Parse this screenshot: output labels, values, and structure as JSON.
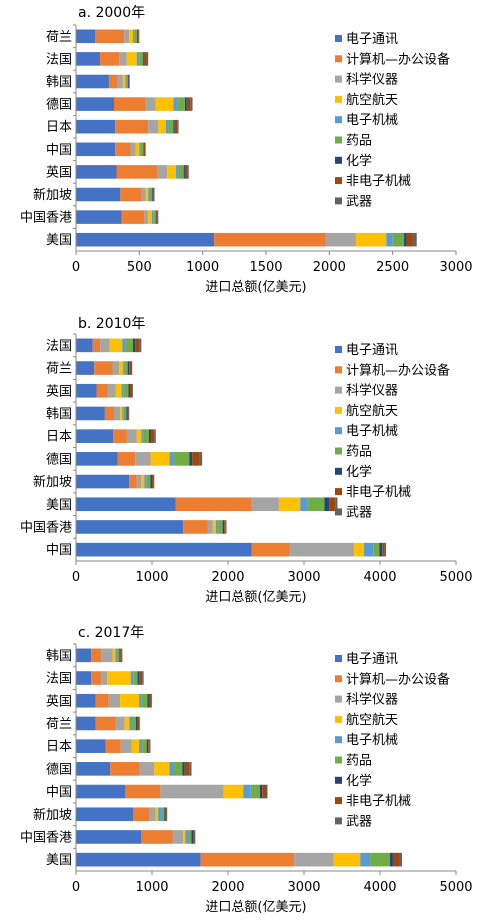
{
  "colors": [
    "#4472C4",
    "#ED7D31",
    "#A5A5A5",
    "#FFC000",
    "#5B9BD5",
    "#70AD47",
    "#264478",
    "#9E480E",
    "#636363"
  ],
  "chart_data": [
    {
      "type": "bar",
      "orientation": "horizontal",
      "stacked": true,
      "title": "a. 2000年",
      "xlabel": "进口总额(亿美元)",
      "xlim": [
        0,
        3000
      ],
      "xticks": [
        "0",
        "500",
        "1000",
        "1500",
        "2000",
        "2500",
        "3000"
      ],
      "xtick_values": [
        0,
        500,
        1000,
        1500,
        2000,
        2500,
        3000
      ],
      "legend_position": "right",
      "categories": [
        "荷兰",
        "法国",
        "韩国",
        "德国",
        "日本",
        "中国",
        "英国",
        "新加坡",
        "中国香港",
        "美国"
      ],
      "series": [
        {
          "name": "电子通讯",
          "values": [
            150,
            190,
            260,
            300,
            310,
            310,
            320,
            350,
            360,
            1090
          ]
        },
        {
          "name": "计算机—办公设备",
          "values": [
            230,
            150,
            70,
            250,
            260,
            120,
            320,
            170,
            180,
            880
          ]
        },
        {
          "name": "科学仪器",
          "values": [
            40,
            60,
            40,
            80,
            80,
            40,
            80,
            30,
            30,
            240
          ]
        },
        {
          "name": "航空航天",
          "values": [
            30,
            80,
            20,
            140,
            60,
            30,
            70,
            20,
            30,
            240
          ]
        },
        {
          "name": "电子机械",
          "values": [
            10,
            20,
            10,
            30,
            20,
            10,
            20,
            10,
            10,
            50
          ]
        },
        {
          "name": "药品",
          "values": [
            20,
            30,
            10,
            60,
            40,
            20,
            40,
            20,
            20,
            90
          ]
        },
        {
          "name": "化学",
          "values": [
            5,
            10,
            5,
            15,
            10,
            5,
            10,
            5,
            5,
            20
          ]
        },
        {
          "name": "非电子机械",
          "values": [
            10,
            20,
            5,
            30,
            20,
            10,
            20,
            10,
            10,
            50
          ]
        },
        {
          "name": "武器",
          "values": [
            5,
            10,
            5,
            15,
            10,
            5,
            10,
            5,
            5,
            30
          ]
        }
      ]
    },
    {
      "type": "bar",
      "orientation": "horizontal",
      "stacked": true,
      "title": "b. 2010年",
      "xlabel": "进口总额(亿美元)",
      "xlim": [
        0,
        5000
      ],
      "xticks": [
        "0",
        "1000",
        "2000",
        "3000",
        "4000",
        "5000"
      ],
      "xtick_values": [
        0,
        1000,
        2000,
        3000,
        4000,
        5000
      ],
      "legend_position": "right",
      "categories": [
        "法国",
        "荷兰",
        "英国",
        "韩国",
        "日本",
        "德国",
        "新加坡",
        "美国",
        "中国香港",
        "中国"
      ],
      "series": [
        {
          "name": "电子通讯",
          "values": [
            220,
            240,
            270,
            380,
            490,
            550,
            700,
            1310,
            1410,
            2310
          ]
        },
        {
          "name": "计算机—办公设备",
          "values": [
            100,
            240,
            150,
            120,
            180,
            230,
            100,
            1000,
            320,
            500
          ]
        },
        {
          "name": "科学仪器",
          "values": [
            120,
            90,
            100,
            80,
            130,
            200,
            60,
            360,
            70,
            850
          ]
        },
        {
          "name": "航空航天",
          "values": [
            170,
            50,
            80,
            30,
            60,
            250,
            40,
            280,
            40,
            130
          ]
        },
        {
          "name": "电子机械",
          "values": [
            40,
            20,
            30,
            20,
            30,
            60,
            30,
            100,
            30,
            120
          ]
        },
        {
          "name": "药品",
          "values": [
            100,
            40,
            60,
            30,
            70,
            200,
            50,
            220,
            60,
            80
          ]
        },
        {
          "name": "化学",
          "values": [
            30,
            20,
            20,
            10,
            20,
            40,
            20,
            60,
            20,
            40
          ]
        },
        {
          "name": "非电子机械",
          "values": [
            60,
            30,
            30,
            20,
            50,
            100,
            20,
            80,
            20,
            30
          ]
        },
        {
          "name": "武器",
          "values": [
            20,
            10,
            10,
            10,
            20,
            30,
            10,
            30,
            10,
            20
          ]
        }
      ]
    },
    {
      "type": "bar",
      "orientation": "horizontal",
      "stacked": true,
      "title": "c. 2017年",
      "xlabel": "进口总额(亿美元)",
      "xlim": [
        0,
        5000
      ],
      "xticks": [
        "0",
        "1000",
        "2000",
        "3000",
        "4000",
        "5000"
      ],
      "xtick_values": [
        0,
        1000,
        2000,
        3000,
        4000,
        5000
      ],
      "legend_position": "right",
      "categories": [
        "韩国",
        "法国",
        "英国",
        "荷兰",
        "日本",
        "德国",
        "中国",
        "新加坡",
        "中国香港",
        "美国"
      ],
      "series": [
        {
          "name": "电子通讯",
          "values": [
            200,
            200,
            260,
            260,
            390,
            450,
            650,
            750,
            860,
            1640
          ]
        },
        {
          "name": "计算机—办公设备",
          "values": [
            130,
            130,
            170,
            260,
            200,
            390,
            460,
            210,
            410,
            1230
          ]
        },
        {
          "name": "科学仪器",
          "values": [
            150,
            80,
            150,
            120,
            140,
            190,
            830,
            90,
            140,
            520
          ]
        },
        {
          "name": "航空航天",
          "values": [
            40,
            310,
            250,
            60,
            100,
            200,
            260,
            30,
            30,
            350
          ]
        },
        {
          "name": "电子机械",
          "values": [
            20,
            40,
            30,
            30,
            40,
            60,
            100,
            40,
            40,
            130
          ]
        },
        {
          "name": "药品",
          "values": [
            30,
            50,
            80,
            60,
            60,
            110,
            120,
            40,
            40,
            260
          ]
        },
        {
          "name": "化学",
          "values": [
            10,
            20,
            20,
            20,
            20,
            30,
            30,
            10,
            20,
            40
          ]
        },
        {
          "name": "非电子机械",
          "values": [
            20,
            40,
            30,
            20,
            20,
            60,
            50,
            20,
            20,
            80
          ]
        },
        {
          "name": "武器",
          "values": [
            10,
            20,
            10,
            10,
            10,
            30,
            20,
            10,
            10,
            40
          ]
        }
      ]
    }
  ]
}
